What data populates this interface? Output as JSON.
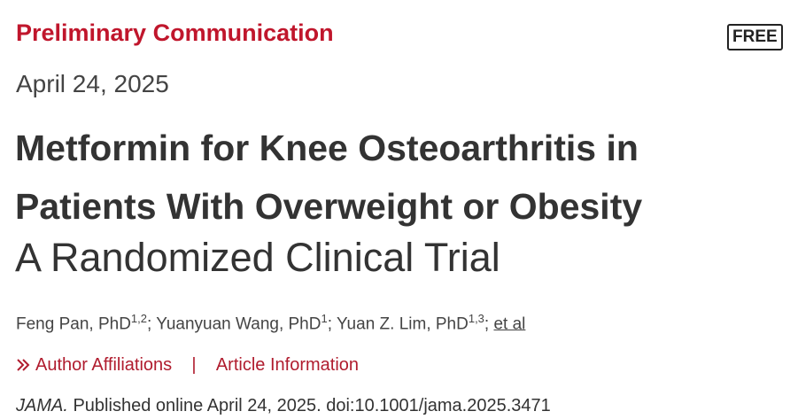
{
  "header": {
    "category": "Preliminary Communication",
    "badge": "FREE",
    "date": "April 24, 2025"
  },
  "article": {
    "title_lines": [
      "Metformin for Knee Osteoarthritis in",
      "Patients With Overweight or Obesity"
    ],
    "subtitle": "A Randomized Clinical Trial",
    "authors": [
      {
        "name": "Feng Pan, PhD",
        "affil": "1,2"
      },
      {
        "name": "Yuanyuan Wang, PhD",
        "affil": "1"
      },
      {
        "name": "Yuan Z. Lim, PhD",
        "affil": "1,3"
      }
    ],
    "author_separator": ";",
    "et_al": "et al"
  },
  "links": {
    "items": [
      "Author Affiliations",
      "Article Information"
    ],
    "separator": "|"
  },
  "citation": {
    "journal": "JAMA.",
    "text": "Published online April 24, 2025. doi:10.1001/jama.2025.3471"
  }
}
